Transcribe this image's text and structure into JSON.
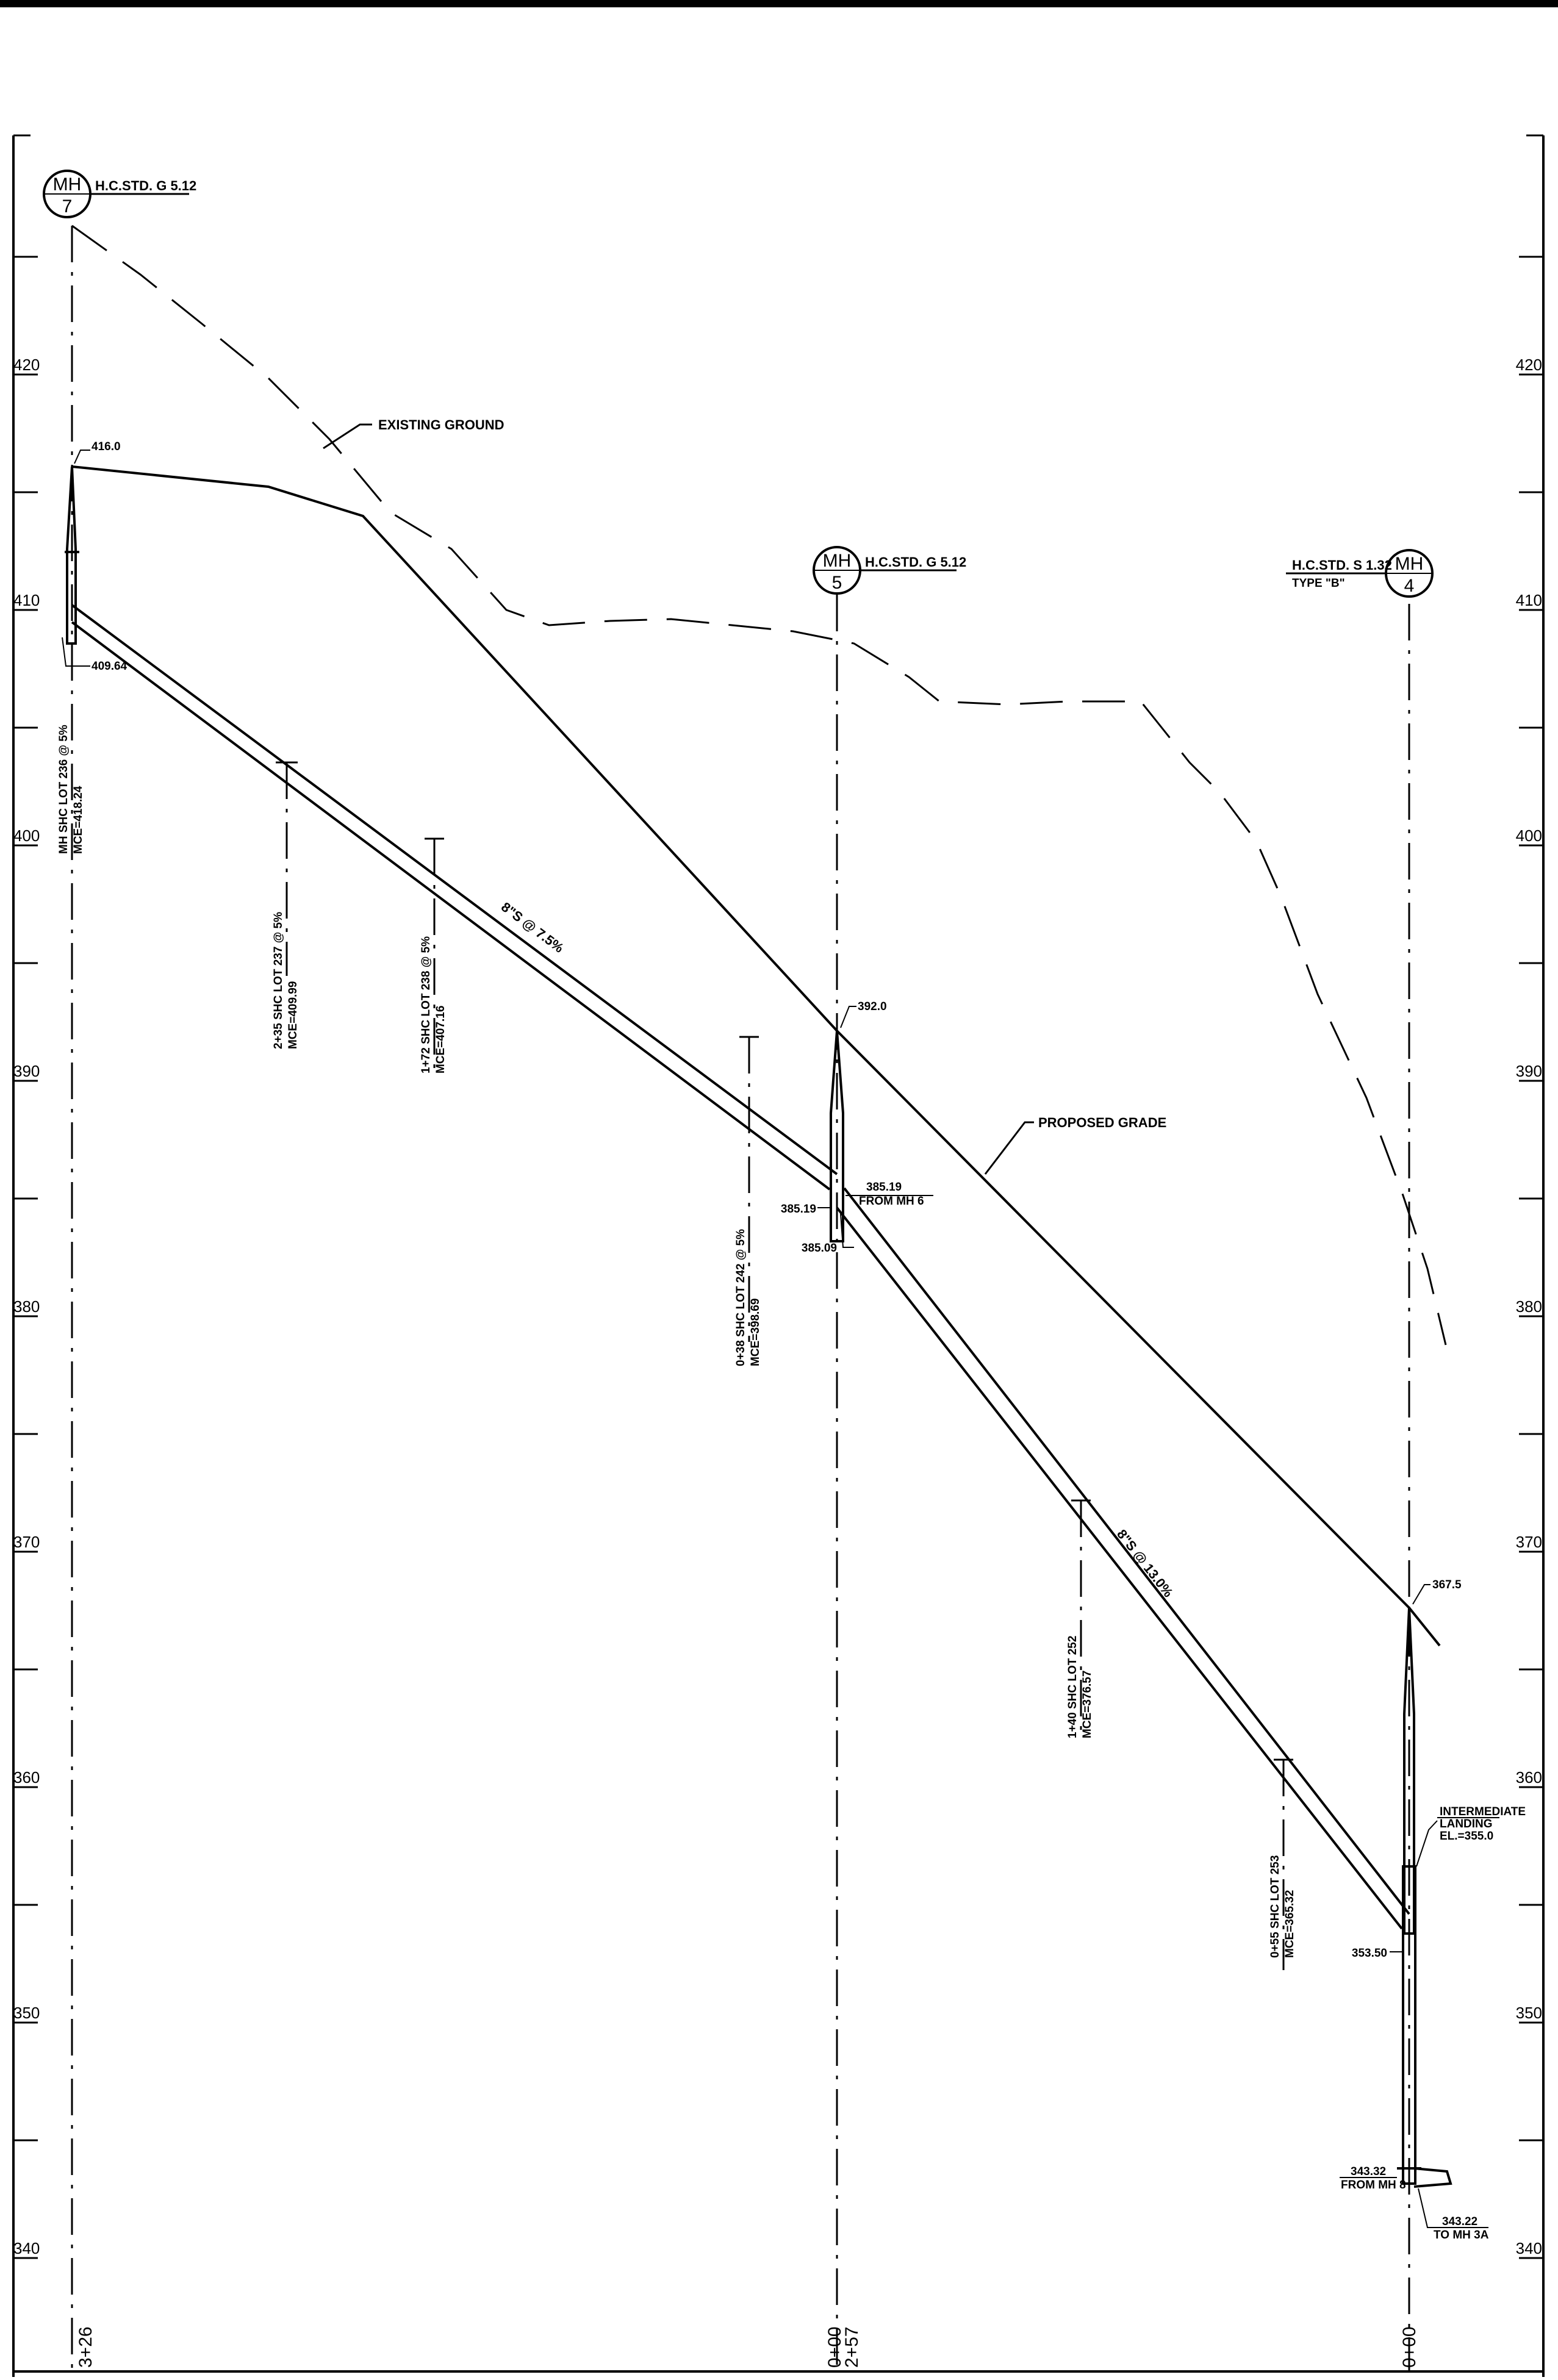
{
  "elevation_axis": {
    "labels": [
      "420",
      "410",
      "400",
      "390",
      "380",
      "370",
      "360",
      "350",
      "340"
    ]
  },
  "manholes": {
    "mh7": {
      "top": "MH",
      "num": "7",
      "std": "H.C.STD. G 5.12"
    },
    "mh5": {
      "top": "MH",
      "num": "5",
      "std": "H.C.STD. G 5.12"
    },
    "mh4": {
      "top": "MH",
      "num": "4",
      "std": "H.C.STD. S 1.32",
      "type": "TYPE \"B\""
    }
  },
  "callouts": {
    "existing_ground": "EXISTING GROUND",
    "proposed_grade": "PROPOSED GRADE",
    "pipe1": "8\"S @ 7.5%",
    "pipe2": "8\"S @ 13.0%",
    "rim_mh7": "416.0",
    "inv_mh7": "409.64",
    "rim_mh5": "392.0",
    "inv_in_mh5": "385.19",
    "from_mh6": "FROM MH 6",
    "inv_left_mh5": "385.19",
    "inv_out_mh5": "385.09",
    "rim_mh4": "367.5",
    "intermediate_1": "INTERMEDIATE",
    "intermediate_2": "LANDING",
    "intermediate_3": "EL.=355.0",
    "inv_mh4": "353.50",
    "inv_in_mh4": "343.32",
    "from_mh8": "FROM MH 8",
    "inv_out_mh4": "343.22",
    "to_mh3a": "TO MH 3A"
  },
  "services": [
    {
      "line1": "MH SHC LOT 236 @ 5%",
      "line2": "MCE=418.24"
    },
    {
      "line1": "2+35 SHC LOT 237 @ 5%",
      "line2": "MCE=409.99"
    },
    {
      "line1": "1+72 SHC LOT 238 @ 5%",
      "line2": "MCE=407.16"
    },
    {
      "line1": "0+38 SHC LOT 242 @ 5%",
      "line2": "MCE=398.69"
    },
    {
      "line1": "1+40 SHC LOT 252",
      "line2": "MCE=376.57"
    },
    {
      "line1": "0+55 SHC LOT 253",
      "line2": "MCE=365.32"
    }
  ],
  "stations": {
    "mh7": "3+26",
    "mh5_a": "0+00",
    "mh5_b": "2+57",
    "mh4": "0+00"
  }
}
